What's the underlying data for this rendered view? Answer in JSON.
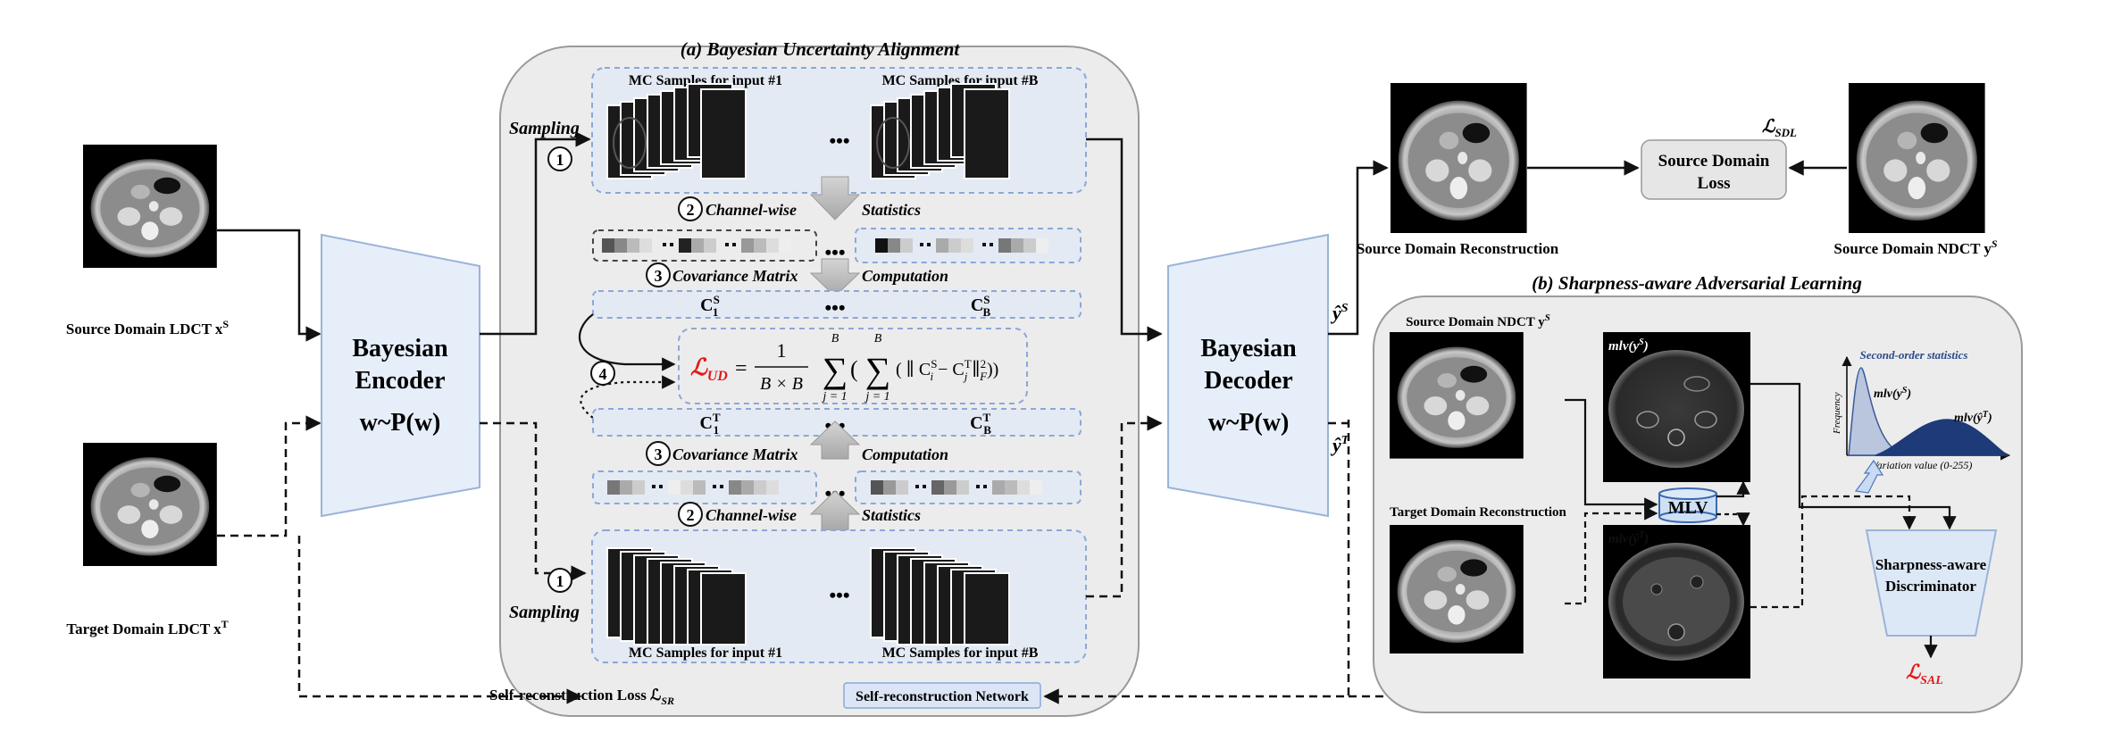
{
  "panel_a": {
    "title": "(a) Bayesian Uncertainty Alignment",
    "mc_samples_1": "MC Samples for input #1",
    "mc_samples_b": "MC Samples for input #B",
    "sampling": "Sampling",
    "channel_wise_a": "Channel-wise",
    "channel_wise_b": "Statistics",
    "covariance_a": "Covariance Matrix",
    "covariance_b": "Computation",
    "ellipsis": "•••",
    "step1": "1",
    "step2": "2",
    "step3": "3",
    "step4": "4",
    "c1s": "C",
    "c1s_sup": "S",
    "c1s_sub": "1",
    "cbs": "C",
    "cbs_sup": "S",
    "cbs_sub": "B",
    "c1t": "C",
    "c1t_sup": "T",
    "c1t_sub": "1",
    "cbt": "C",
    "cbt_sup": "T",
    "cbt_sub": "B",
    "loss_ud_symbol": "ℒ",
    "loss_ud_sub": "UD",
    "loss_ud_eq": "= ",
    "frac_num": "1",
    "frac_den": "B × B",
    "sum_top": "B",
    "sum_bot": "j = 1",
    "sum_bot2": "j = 1",
    "sum_sym": "∑",
    "formula_body": "( ∥ C",
    "formula_ci_sub": "i",
    "formula_ci_sup": "S",
    "formula_minus": " − C",
    "formula_cj_sub": "j",
    "formula_cj_sup": "T",
    "formula_norm": " ∥",
    "formula_f": "F",
    "formula_two": "2",
    "formula_close": "))"
  },
  "left": {
    "source_label": "Source Domain  LDCT x",
    "source_sup": "S",
    "target_label": "Target Domain LDCT x",
    "target_sup": "T"
  },
  "encoder": {
    "line1": "Bayesian",
    "line2": "Encoder",
    "line3": "w~P(w)"
  },
  "decoder": {
    "line1": "Bayesian",
    "line2": "Decoder",
    "line3": "w~P(w)"
  },
  "outputs": {
    "ys_hat": "ŷ",
    "ys_sup": "S",
    "yt_hat": "ŷ",
    "yt_sup": "T"
  },
  "right_top": {
    "source_recon": "Source Domain Reconstruction",
    "source_ndct": "Source Domain NDCT y",
    "source_ndct_sup": "S",
    "loss_box_line1": "Source Domain",
    "loss_box_line2": "Loss",
    "loss_sdl": "ℒ",
    "loss_sdl_sub": "SDL"
  },
  "panel_b": {
    "title": "(b) Sharpness-aware Adversarial Learning",
    "source_ndct": "Source Domain NDCT y",
    "source_ndct_sup": "S",
    "target_recon": "Target Domain Reconstruction",
    "mlv_ys": "mlv(y",
    "mlv_ys_sup": "S",
    "mlv_yt": "mlv(ŷ",
    "mlv_yt_sup": "T",
    "mlv_close": ")",
    "mlv_box": "MLV",
    "second_order": "Second-order statistics",
    "frequency": "Frequency",
    "variation": "Variation value (0-255)",
    "curve_ys": "mlv(y",
    "curve_ys_sup": "S",
    "curve_yt": "mlv(ŷ",
    "curve_yt_sup": "T",
    "disc_line1": "Sharpness-aware",
    "disc_line2": "Discriminator",
    "loss_sal": "ℒ",
    "loss_sal_sub": "SAL"
  },
  "bottom": {
    "self_recon_loss": "Self-reconstruction Loss ℒ",
    "self_recon_sub": "SR",
    "self_recon_net": "Self-reconstruction Network"
  },
  "colors": {
    "panel_fill": "#ececec",
    "panel_stroke": "#9a9a9a",
    "trap_fill": "#e6eef9",
    "trap_stroke": "#9ab4d8",
    "dash_blue": "#8aa8d8",
    "loss_red": "#e21b1b",
    "curve_light": "#a9b9d9",
    "curve_dark": "#1e3a78"
  }
}
